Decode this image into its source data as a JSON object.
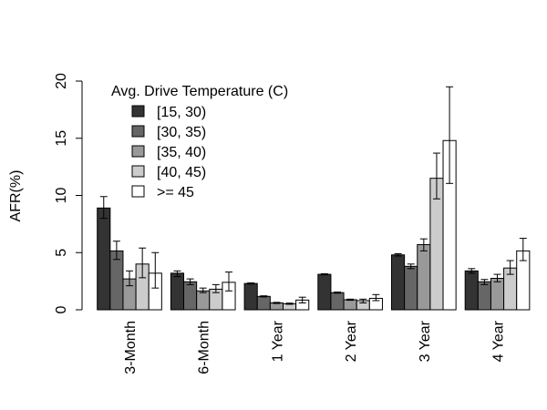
{
  "chart_data": {
    "type": "bar",
    "title": "",
    "xlabel": "",
    "ylabel": "AFR(%)",
    "ylim": [
      0,
      20
    ],
    "yticks": [
      "0",
      "5",
      "10",
      "15",
      "20"
    ],
    "grid": false,
    "legend_title": "Avg. Drive Temperature (C)",
    "legend_position": "top-left",
    "categories": [
      "3-Month",
      "6-Month",
      "1 Year",
      "2 Year",
      "3 Year",
      "4 Year"
    ],
    "series": [
      {
        "name": "[15, 30)",
        "color": "#333333",
        "values": [
          8.9,
          3.2,
          2.3,
          3.1,
          4.8,
          3.4
        ],
        "err_low": [
          8.0,
          2.9,
          2.25,
          3.05,
          4.7,
          3.2
        ],
        "err_high": [
          9.9,
          3.4,
          2.35,
          3.15,
          4.9,
          3.6
        ]
      },
      {
        "name": "[30, 35)",
        "color": "#666666",
        "values": [
          5.15,
          2.45,
          1.17,
          1.5,
          3.8,
          2.45
        ],
        "err_low": [
          4.4,
          2.2,
          1.12,
          1.45,
          3.6,
          2.2
        ],
        "err_high": [
          6.0,
          2.7,
          1.22,
          1.55,
          4.0,
          2.65
        ]
      },
      {
        "name": "[35, 40)",
        "color": "#999999",
        "values": [
          2.7,
          1.65,
          0.6,
          0.88,
          5.7,
          2.75
        ],
        "err_low": [
          2.1,
          1.5,
          0.55,
          0.83,
          5.15,
          2.45
        ],
        "err_high": [
          3.4,
          1.9,
          0.65,
          0.93,
          6.2,
          3.1
        ]
      },
      {
        "name": "[40, 45)",
        "color": "#cccccc",
        "values": [
          4.0,
          1.8,
          0.53,
          0.8,
          11.5,
          3.65
        ],
        "err_low": [
          2.8,
          1.5,
          0.48,
          0.6,
          9.7,
          3.1
        ],
        "err_high": [
          5.4,
          2.2,
          0.58,
          0.93,
          13.7,
          4.3
        ]
      },
      {
        "name": ">= 45",
        "color": "#ffffff",
        "values": [
          3.2,
          2.4,
          0.85,
          1.0,
          14.8,
          5.15
        ],
        "err_low": [
          1.9,
          1.65,
          0.6,
          0.8,
          11.05,
          4.3
        ],
        "err_high": [
          5.0,
          3.3,
          1.1,
          1.33,
          19.5,
          6.25
        ]
      }
    ]
  }
}
